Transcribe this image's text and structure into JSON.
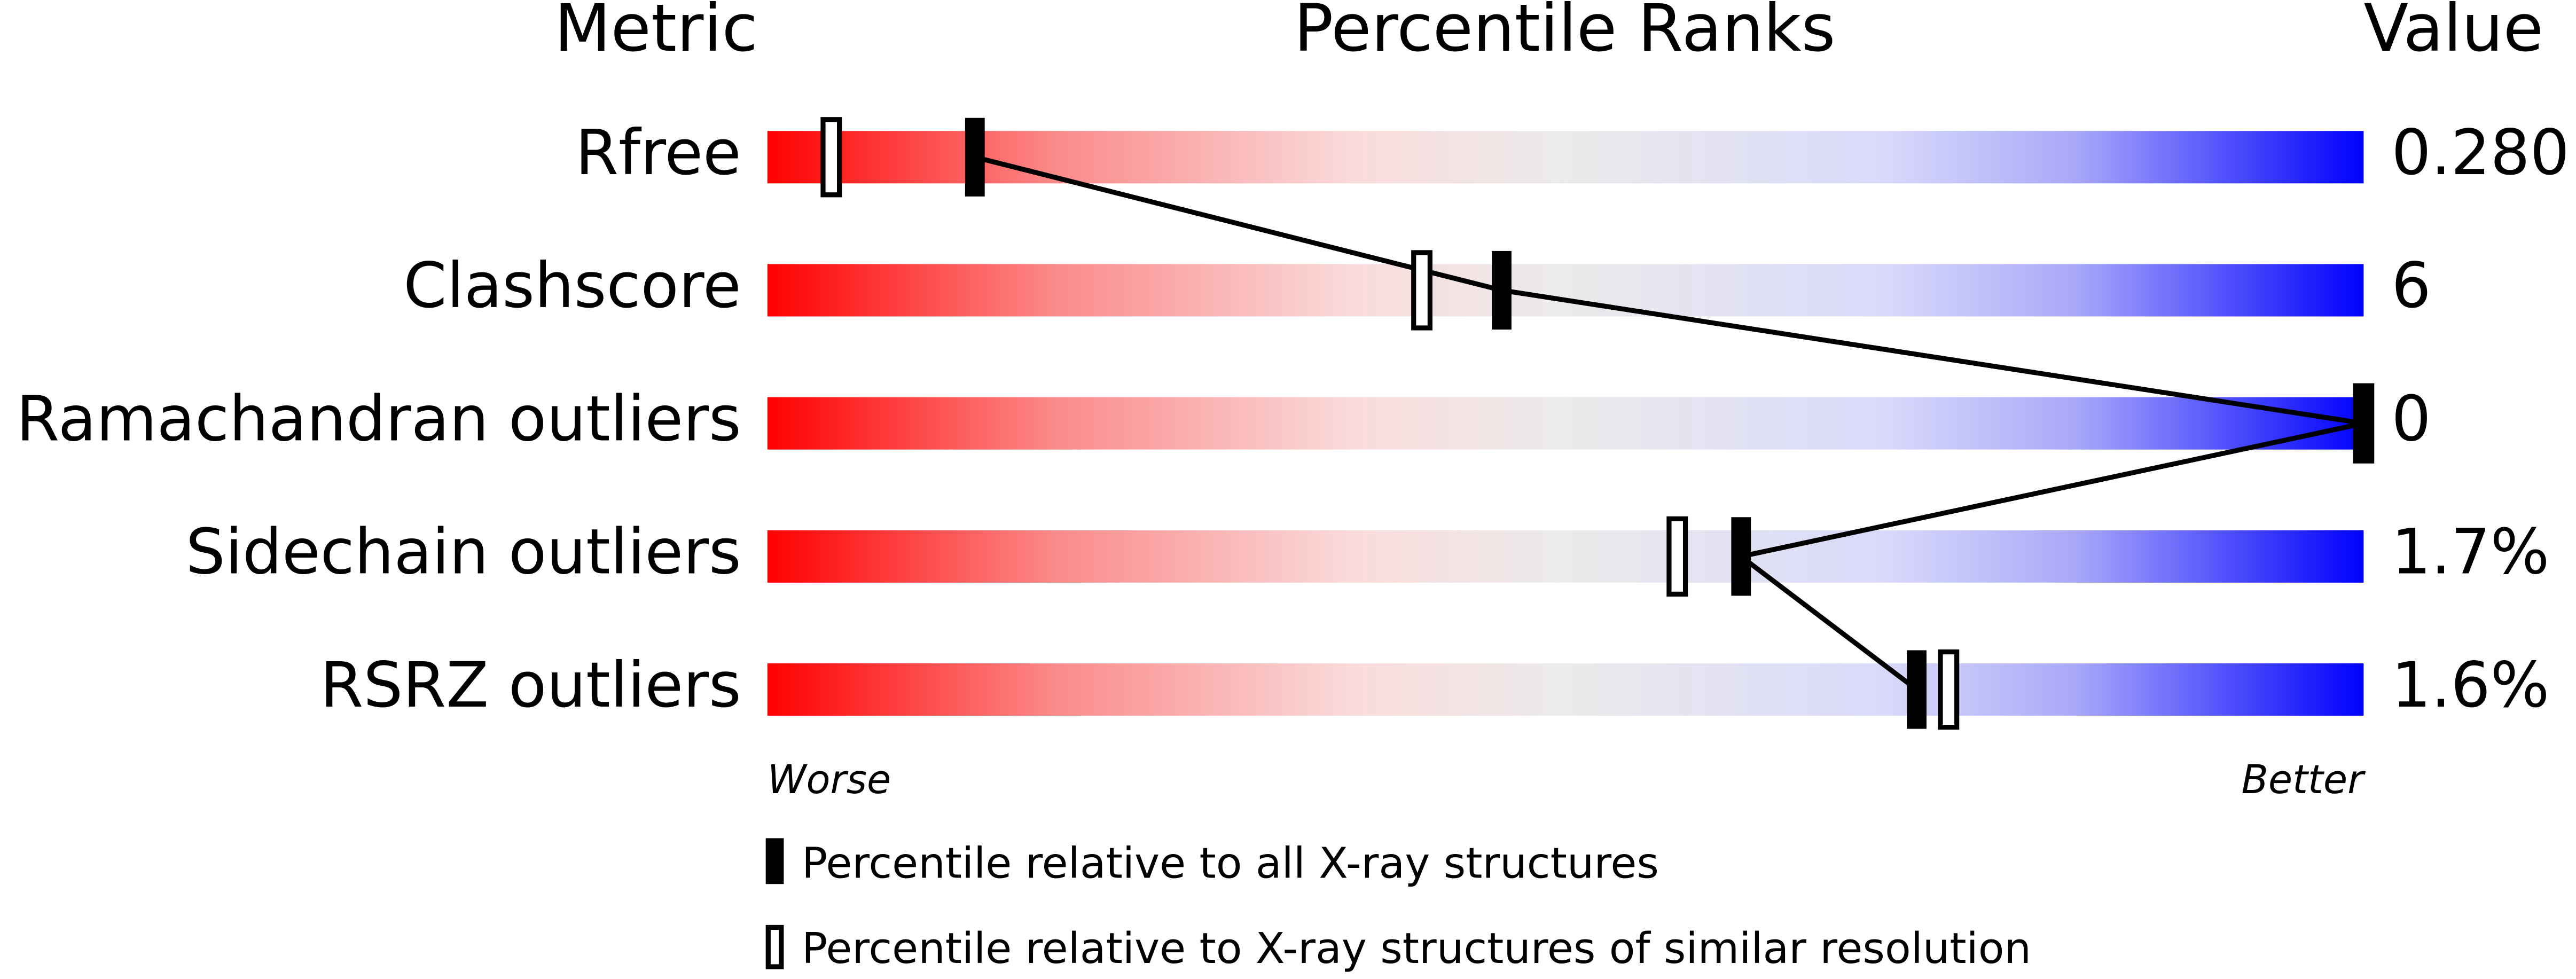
{
  "chart_data": {
    "type": "percentile-slider",
    "headers": [
      "Metric",
      "Percentile Ranks",
      "Value"
    ],
    "categories": [
      "Rfree",
      "Clashscore",
      "Ramachandran outliers",
      "Sidechain outliers",
      "RSRZ outliers"
    ],
    "metric_values": [
      "0.280",
      "6",
      "0",
      "1.7%",
      "1.6%"
    ],
    "xlim": [
      0,
      100
    ],
    "x_start_label": "Worse",
    "x_end_label": "Better",
    "series": [
      {
        "name": "Percentile relative to all X-ray structures",
        "color": "#000000",
        "values": [
          13,
          46,
          100,
          61,
          72
        ]
      },
      {
        "name": "Percentile relative to X-ray structures of similar resolution",
        "color": "#000000",
        "values": [
          4,
          41,
          100,
          57,
          74
        ]
      }
    ]
  }
}
